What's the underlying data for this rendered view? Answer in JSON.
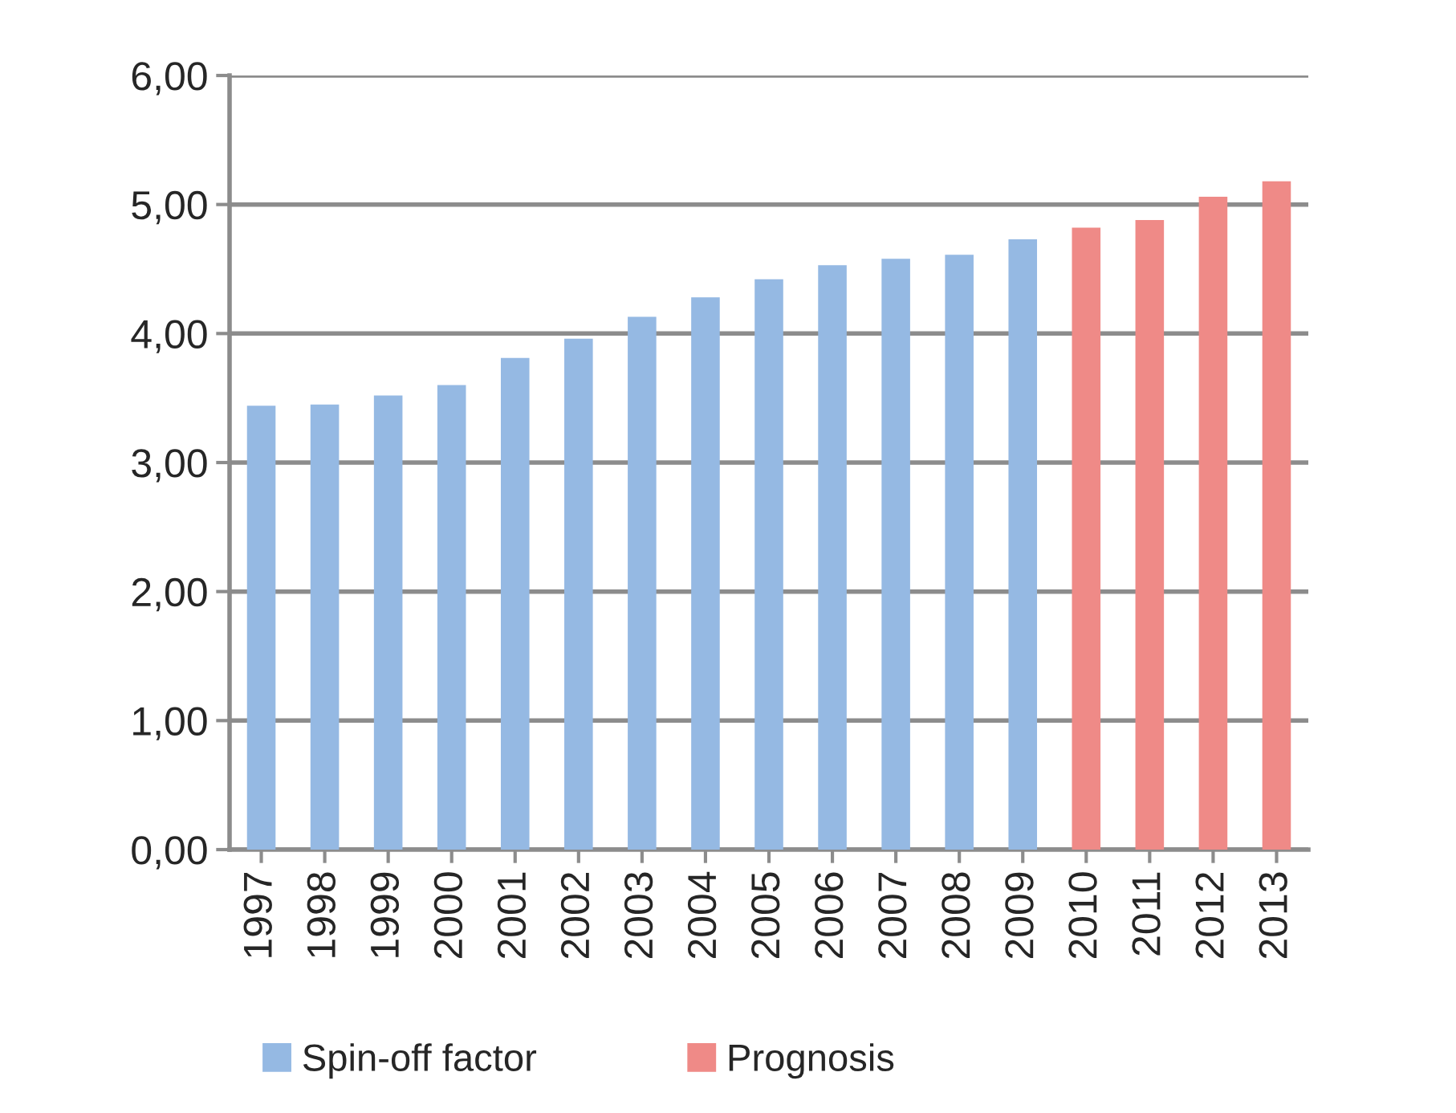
{
  "chart_data": {
    "type": "bar",
    "categories": [
      "1997",
      "1998",
      "1999",
      "2000",
      "2001",
      "2002",
      "2003",
      "2004",
      "2005",
      "2006",
      "2007",
      "2008",
      "2009",
      "2010",
      "2011",
      "2012",
      "2013"
    ],
    "series": [
      {
        "name": "Spin-off factor",
        "color": "#95b9e3",
        "values": [
          3.44,
          3.45,
          3.52,
          3.6,
          3.81,
          3.96,
          4.13,
          4.28,
          4.42,
          4.53,
          4.58,
          4.61,
          4.73,
          null,
          null,
          null,
          null
        ]
      },
      {
        "name": "Prognosis",
        "color": "#ef8a87",
        "values": [
          null,
          null,
          null,
          null,
          null,
          null,
          null,
          null,
          null,
          null,
          null,
          null,
          null,
          4.82,
          4.88,
          5.06,
          5.18
        ]
      }
    ],
    "ylim": [
      0,
      6
    ],
    "yticks": [
      {
        "value": 0,
        "label": "0,00"
      },
      {
        "value": 1,
        "label": "1,00"
      },
      {
        "value": 2,
        "label": "2,00"
      },
      {
        "value": 3,
        "label": "3,00"
      },
      {
        "value": 4,
        "label": "4,00"
      },
      {
        "value": 5,
        "label": "5,00"
      },
      {
        "value": 6,
        "label": "6,00"
      }
    ],
    "grid": "y",
    "legend": "bottom"
  }
}
